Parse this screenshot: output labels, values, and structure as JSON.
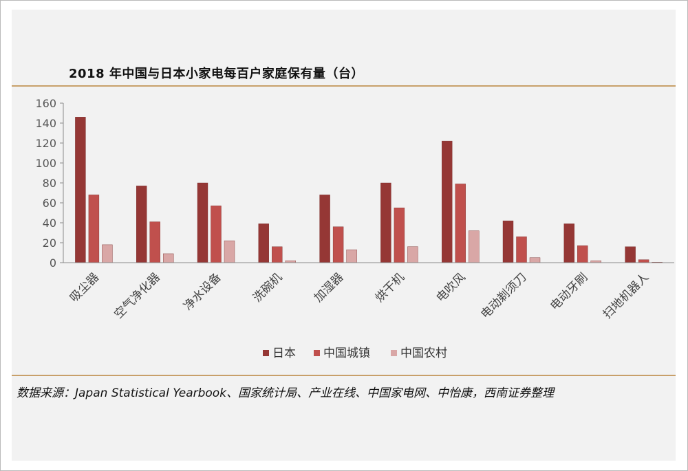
{
  "chart_data": {
    "type": "bar",
    "title": "2018 年中国与日本小家电每百户家庭保有量（台）",
    "categories": [
      "吸尘器",
      "空气净化器",
      "净水设备",
      "洗碗机",
      "加湿器",
      "烘干机",
      "电吹风",
      "电动剃须刀",
      "电动牙刷",
      "扫地机器人"
    ],
    "series": [
      {
        "name": "日本",
        "color": "#953735",
        "values": [
          146,
          77,
          80,
          39,
          68,
          80,
          122,
          42,
          39,
          16
        ]
      },
      {
        "name": "中国城镇",
        "color": "#c0504d",
        "values": [
          68,
          41,
          57,
          16,
          36,
          55,
          79,
          26,
          17,
          3
        ]
      },
      {
        "name": "中国农村",
        "color": "#d9a7a6",
        "values": [
          18,
          9,
          22,
          2,
          13,
          16,
          32,
          5,
          2,
          0.5
        ]
      }
    ],
    "ylim": [
      0,
      160
    ],
    "yticks": [
      "0",
      "20",
      "40",
      "60",
      "80",
      "100",
      "120",
      "140",
      "160"
    ],
    "xlabel": "",
    "ylabel": "",
    "legend_position": "bottom",
    "grid": false
  },
  "source_note": "数据来源：Japan Statistical Yearbook、国家统计局、产业在线、中国家电网、中怡康，西南证券整理"
}
